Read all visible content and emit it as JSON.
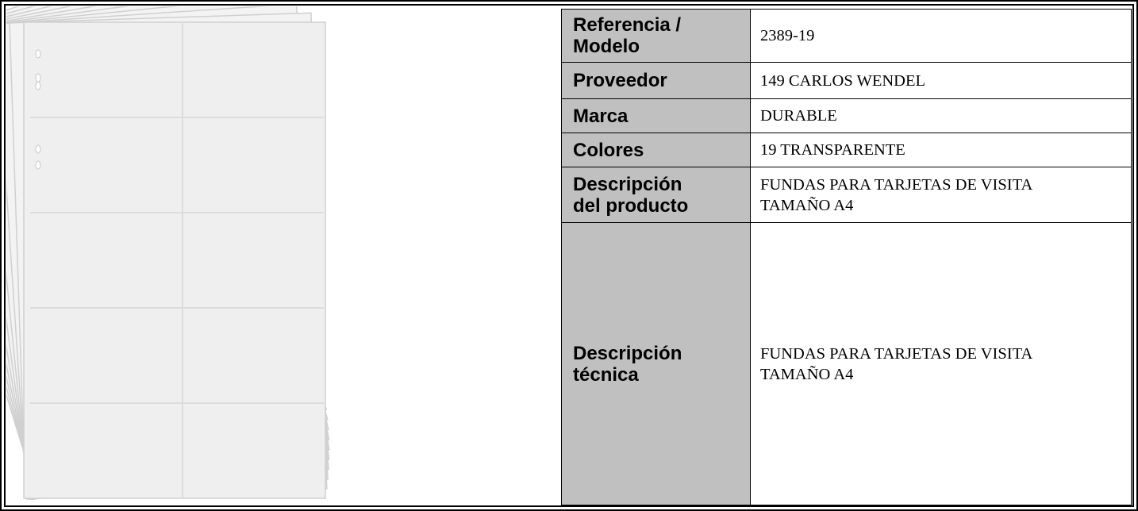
{
  "table": {
    "rows": [
      [
        "Referencia / Modelo",
        "2389-19"
      ],
      [
        "Proveedor",
        "149 CARLOS WENDEL"
      ],
      [
        "Marca",
        "DURABLE"
      ],
      [
        "Colores",
        "19 TRANSPARENTE"
      ],
      [
        "Descripción del producto",
        "FUNDAS PARA TARJETAS DE VISITA TAMAÑO A4"
      ],
      [
        "Descripción técnica",
        "FUNDAS PARA TARJETAS DE VISITA TAMAÑO A4"
      ]
    ]
  }
}
